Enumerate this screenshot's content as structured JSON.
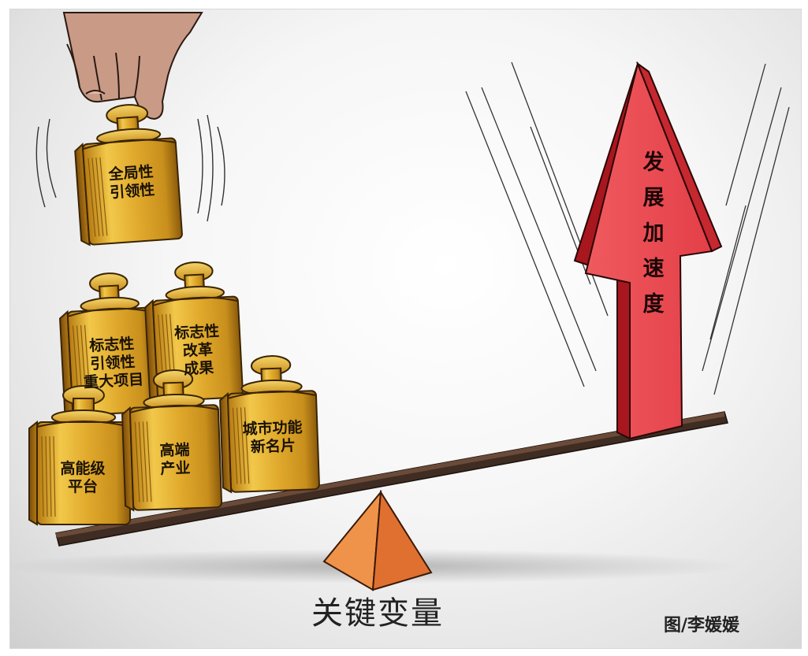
{
  "weights": [
    {
      "label": "全局性\n引领性"
    },
    {
      "label": "标志性\n引领性\n重大项目"
    },
    {
      "label": "标志性\n改革\n成果"
    },
    {
      "label": "高能级\n平台"
    },
    {
      "label": "高端\n产业"
    },
    {
      "label": "城市功能\n新名片"
    }
  ],
  "arrow_text": "发\n展\n加\n速\n度",
  "caption": "关键变量",
  "credit": "图/李媛媛",
  "colors": {
    "gold": "#d9a42a",
    "gold_dark": "#8a5a0c",
    "arrow_red": "#e0424a",
    "arrow_dark": "#a8161e",
    "fulcrum": "#e8782a",
    "beam": "#4a3428"
  }
}
